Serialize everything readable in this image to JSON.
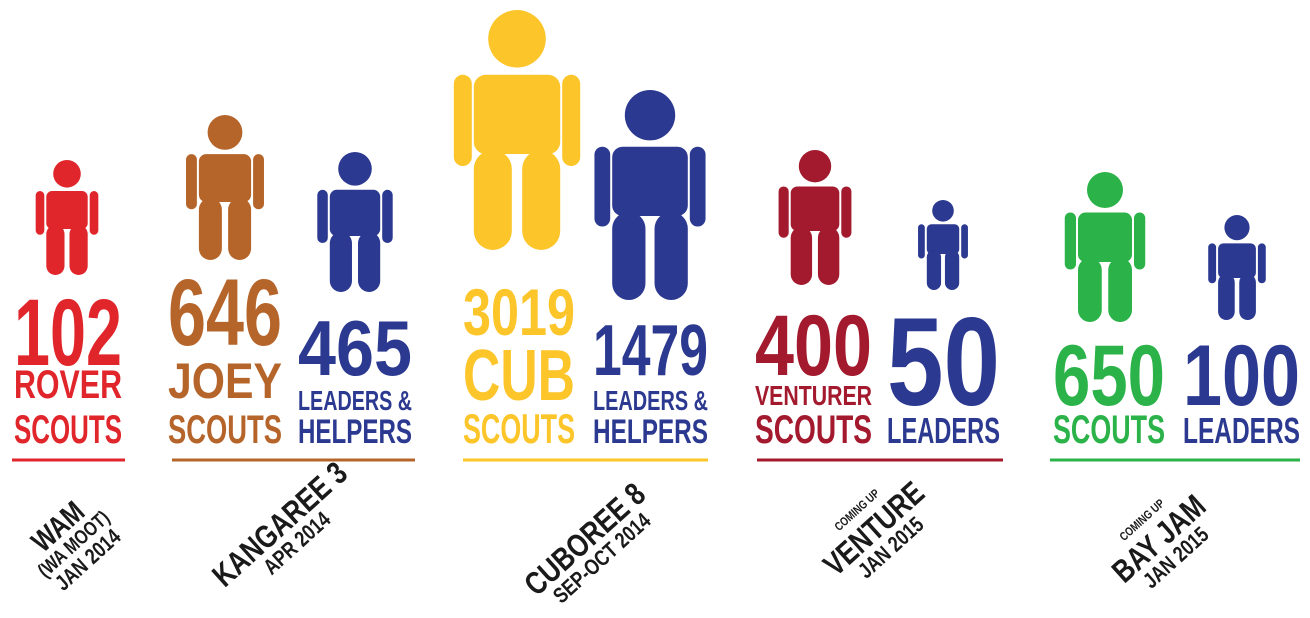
{
  "groups": [
    {
      "color": "#e0262b",
      "figures": [
        {
          "number": "102",
          "label": [
            "ROVER",
            "SCOUTS"
          ],
          "color": "#e0262b"
        }
      ],
      "event": [
        "WAM",
        "(WA MOOT)",
        "JAN 2014"
      ]
    },
    {
      "color": "#b5642a",
      "figures": [
        {
          "number": "646",
          "label": [
            "JOEY",
            "SCOUTS"
          ],
          "color": "#b5642a"
        },
        {
          "number": "465",
          "label": [
            "LEADERS &",
            "HELPERS"
          ],
          "color": "#2b3990"
        }
      ],
      "event": [
        "KANGAREE 3",
        "APR 2014"
      ]
    },
    {
      "color": "#fcc52a",
      "figures": [
        {
          "number": "3019",
          "label": [
            "CUB",
            "SCOUTS"
          ],
          "color": "#fcc52a"
        },
        {
          "number": "1479",
          "label": [
            "LEADERS &",
            "HELPERS"
          ],
          "color": "#2b3990"
        }
      ],
      "event": [
        "CUBOREE 8",
        "SEP-OCT 2014"
      ]
    },
    {
      "color": "#a3192e",
      "figures": [
        {
          "number": "400",
          "label": [
            "VENTURER",
            "SCOUTS"
          ],
          "color": "#a3192e"
        },
        {
          "number": "50",
          "label": [
            "LEADERS"
          ],
          "color": "#2b3990"
        }
      ],
      "event": [
        "COMING UP",
        "VENTURE",
        "JAN 2015"
      ]
    },
    {
      "color": "#2bb34a",
      "figures": [
        {
          "number": "650",
          "label": [
            "SCOUTS"
          ],
          "color": "#2bb34a"
        },
        {
          "number": "100",
          "label": [
            "LEADERS"
          ],
          "color": "#2b3990"
        }
      ],
      "event": [
        "COMING UP",
        "BAY JAM",
        "JAN 2015"
      ]
    }
  ]
}
